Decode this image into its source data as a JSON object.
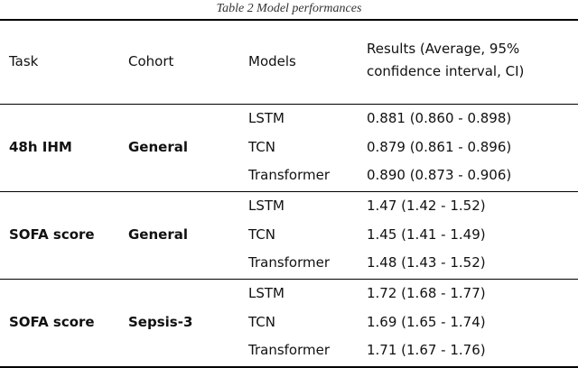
{
  "caption": "Table 2 Model performances",
  "headers": {
    "task": "Task",
    "cohort": "Cohort",
    "models": "Models",
    "results_line1": "Results (Average, 95%",
    "results_line2": "confidence interval, CI)"
  },
  "groups": [
    {
      "task": "48h IHM",
      "cohort": "General",
      "rows": [
        {
          "model": "LSTM",
          "result": "0.881 (0.860 - 0.898)"
        },
        {
          "model": "TCN",
          "result": "0.879 (0.861 - 0.896)"
        },
        {
          "model": "Transformer",
          "result": "0.890 (0.873 - 0.906)"
        }
      ]
    },
    {
      "task": "SOFA score",
      "cohort": "General",
      "rows": [
        {
          "model": "LSTM",
          "result": "1.47 (1.42 - 1.52)"
        },
        {
          "model": "TCN",
          "result": "1.45 (1.41 - 1.49)"
        },
        {
          "model": "Transformer",
          "result": "1.48 (1.43 - 1.52)"
        }
      ]
    },
    {
      "task": "SOFA score",
      "cohort": "Sepsis-3",
      "rows": [
        {
          "model": "LSTM",
          "result": "1.72 (1.68 - 1.77)"
        },
        {
          "model": "TCN",
          "result": "1.69 (1.65 - 1.74)"
        },
        {
          "model": "Transformer",
          "result": "1.71 (1.67 - 1.76)"
        }
      ]
    }
  ]
}
